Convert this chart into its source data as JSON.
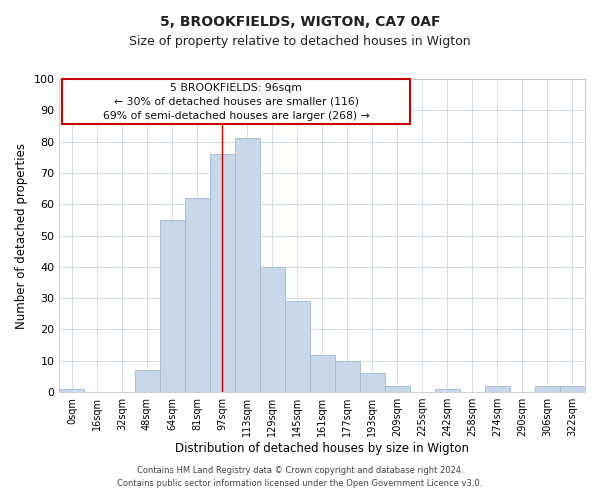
{
  "title": "5, BROOKFIELDS, WIGTON, CA7 0AF",
  "subtitle": "Size of property relative to detached houses in Wigton",
  "xlabel": "Distribution of detached houses by size in Wigton",
  "ylabel": "Number of detached properties",
  "bar_labels": [
    "0sqm",
    "16sqm",
    "32sqm",
    "48sqm",
    "64sqm",
    "81sqm",
    "97sqm",
    "113sqm",
    "129sqm",
    "145sqm",
    "161sqm",
    "177sqm",
    "193sqm",
    "209sqm",
    "225sqm",
    "242sqm",
    "258sqm",
    "274sqm",
    "290sqm",
    "306sqm",
    "322sqm"
  ],
  "bar_heights": [
    1,
    0,
    0,
    7,
    55,
    62,
    76,
    81,
    40,
    29,
    12,
    10,
    6,
    2,
    0,
    1,
    0,
    2,
    0,
    2,
    2
  ],
  "bar_color": "#c8d8ea",
  "bar_edge_color": "#a0b8ce",
  "grid_color": "#d4dde8",
  "ylim": [
    0,
    100
  ],
  "yticks": [
    0,
    10,
    20,
    30,
    40,
    50,
    60,
    70,
    80,
    90,
    100
  ],
  "vline_x_index": 6,
  "vline_color": "#cc0000",
  "ann_line1": "5 BROOKFIELDS: 96sqm",
  "ann_line2": "← 30% of detached houses are smaller (116)",
  "ann_line3": "69% of semi-detached houses are larger (268) →",
  "annotation_box_color": "#cc0000",
  "footer_line1": "Contains HM Land Registry data © Crown copyright and database right 2024.",
  "footer_line2": "Contains public sector information licensed under the Open Government Licence v3.0.",
  "background_color": "#ffffff",
  "fig_width": 6.0,
  "fig_height": 5.0,
  "title_fontsize": 10,
  "subtitle_fontsize": 9
}
